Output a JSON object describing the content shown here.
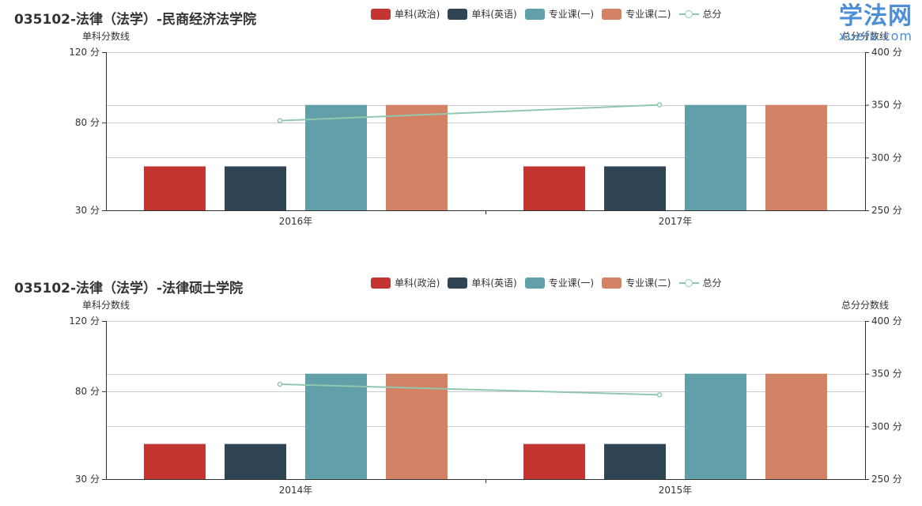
{
  "watermark": {
    "main": "学法网",
    "sub": "xuefa.com"
  },
  "legend": [
    {
      "label": "单科(政治)",
      "color": "#c23531",
      "kind": "bar"
    },
    {
      "label": "单科(英语)",
      "color": "#2f4554",
      "kind": "bar"
    },
    {
      "label": "专业课(一)",
      "color": "#61a0a8",
      "kind": "bar"
    },
    {
      "label": "专业课(二)",
      "color": "#d48265",
      "kind": "bar"
    },
    {
      "label": "总分",
      "color": "#91c7ae",
      "kind": "line"
    }
  ],
  "chart_data": [
    {
      "type": "bar",
      "title": "035102-法律（法学）-民商经济法学院",
      "categories": [
        "2016年",
        "2017年"
      ],
      "left_axis": {
        "name": "单科分数线",
        "min": 30,
        "max": 120,
        "ticks": [
          30,
          80,
          120
        ],
        "tick_suffix": " 分"
      },
      "right_axis": {
        "name": "总分分数线",
        "min": 250,
        "max": 400,
        "ticks": [
          250,
          300,
          350,
          400
        ],
        "tick_suffix": " 分"
      },
      "series": [
        {
          "name": "单科(政治)",
          "axis": "left",
          "values": [
            55,
            55
          ]
        },
        {
          "name": "单科(英语)",
          "axis": "left",
          "values": [
            55,
            55
          ]
        },
        {
          "name": "专业课(一)",
          "axis": "left",
          "values": [
            90,
            90
          ]
        },
        {
          "name": "专业课(二)",
          "axis": "left",
          "values": [
            90,
            90
          ]
        },
        {
          "name": "总分",
          "axis": "right",
          "type": "line",
          "values": [
            335,
            350
          ]
        }
      ]
    },
    {
      "type": "bar",
      "title": "035102-法律（法学）-法律硕士学院",
      "categories": [
        "2014年",
        "2015年"
      ],
      "left_axis": {
        "name": "单科分数线",
        "min": 30,
        "max": 120,
        "ticks": [
          30,
          80,
          120
        ],
        "tick_suffix": " 分"
      },
      "right_axis": {
        "name": "总分分数线",
        "min": 250,
        "max": 400,
        "ticks": [
          250,
          300,
          350,
          400
        ],
        "tick_suffix": " 分"
      },
      "series": [
        {
          "name": "单科(政治)",
          "axis": "left",
          "values": [
            50,
            50
          ]
        },
        {
          "name": "单科(英语)",
          "axis": "left",
          "values": [
            50,
            50
          ]
        },
        {
          "name": "专业课(一)",
          "axis": "left",
          "values": [
            90,
            90
          ]
        },
        {
          "name": "专业课(二)",
          "axis": "left",
          "values": [
            90,
            90
          ]
        },
        {
          "name": "总分",
          "axis": "right",
          "type": "line",
          "values": [
            340,
            330
          ]
        }
      ]
    }
  ]
}
